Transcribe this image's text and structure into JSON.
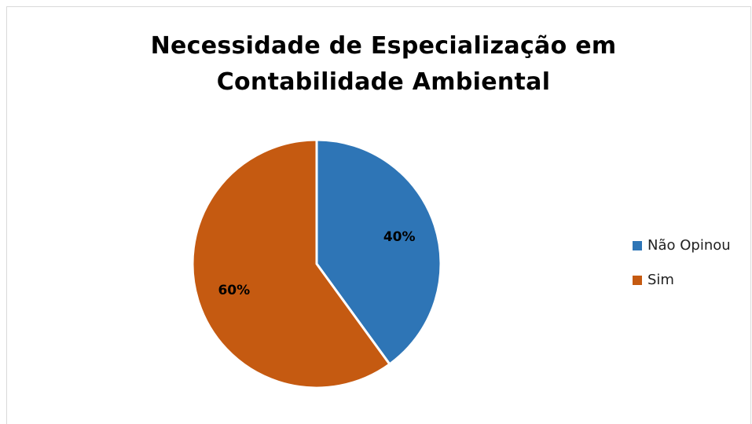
{
  "chart_data": {
    "type": "pie",
    "title": "Necessidade de Especialização em Contabilidade Ambiental",
    "categories": [
      "Não Opinou",
      "Sim"
    ],
    "values": [
      40,
      60
    ],
    "value_labels": [
      "40%",
      "60%"
    ],
    "colors": [
      "#2e75b6",
      "#c55a11"
    ],
    "legend": "right"
  }
}
